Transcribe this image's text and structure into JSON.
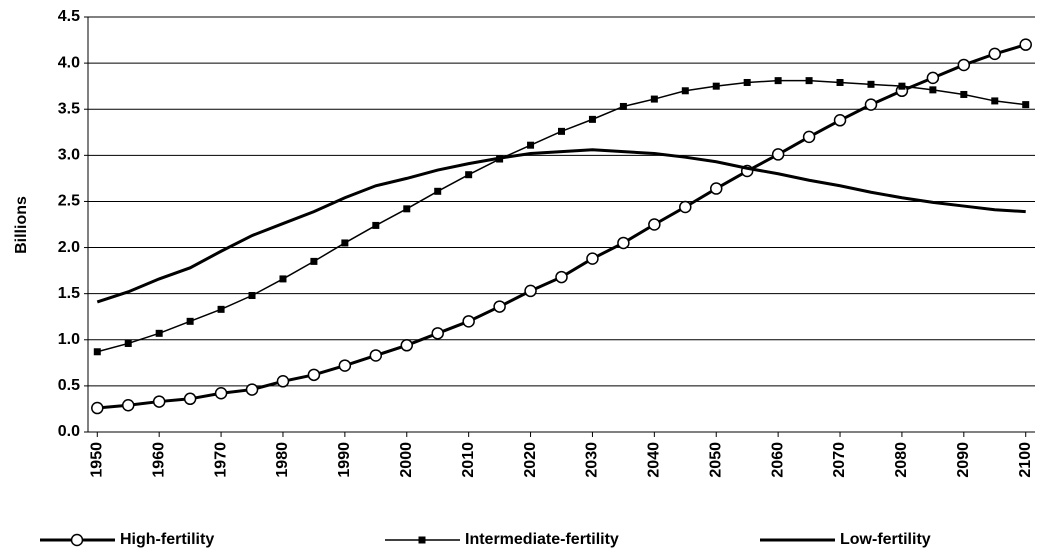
{
  "chart_data": {
    "type": "line",
    "y_label": "Billions",
    "x": [
      1950,
      1955,
      1960,
      1965,
      1970,
      1975,
      1980,
      1985,
      1990,
      1995,
      2000,
      2005,
      2010,
      2015,
      2020,
      2025,
      2030,
      2035,
      2040,
      2045,
      2050,
      2055,
      2060,
      2065,
      2070,
      2075,
      2080,
      2085,
      2090,
      2095,
      2100
    ],
    "series": [
      {
        "name": "High-fertility",
        "color": "#000000",
        "marker": "circle",
        "line_width": 3,
        "values": [
          0.26,
          0.29,
          0.33,
          0.36,
          0.42,
          0.46,
          0.55,
          0.62,
          0.72,
          0.83,
          0.94,
          1.07,
          1.2,
          1.36,
          1.53,
          1.68,
          1.88,
          2.05,
          2.25,
          2.44,
          2.64,
          2.83,
          3.01,
          3.2,
          3.38,
          3.55,
          3.7,
          3.84,
          3.98,
          4.1,
          4.2
        ]
      },
      {
        "name": "Intermediate-fertility",
        "color": "#000000",
        "marker": "square",
        "line_width": 1.5,
        "values": [
          0.87,
          0.96,
          1.07,
          1.2,
          1.33,
          1.48,
          1.66,
          1.85,
          2.05,
          2.24,
          2.42,
          2.61,
          2.79,
          2.96,
          3.11,
          3.26,
          3.39,
          3.53,
          3.61,
          3.7,
          3.75,
          3.79,
          3.81,
          3.81,
          3.79,
          3.77,
          3.75,
          3.71,
          3.66,
          3.59,
          3.55
        ]
      },
      {
        "name": "Low-fertility",
        "color": "#000000",
        "marker": "none",
        "line_width": 3,
        "values": [
          1.41,
          1.52,
          1.66,
          1.78,
          1.96,
          2.13,
          2.26,
          2.39,
          2.54,
          2.67,
          2.75,
          2.84,
          2.91,
          2.97,
          3.02,
          3.04,
          3.06,
          3.04,
          3.02,
          2.98,
          2.93,
          2.86,
          2.8,
          2.73,
          2.67,
          2.6,
          2.54,
          2.49,
          2.45,
          2.41,
          2.39
        ]
      }
    ],
    "xlim": [
      1948.5,
      2101.5
    ],
    "xticks": [
      1950,
      1960,
      1970,
      1980,
      1990,
      2000,
      2010,
      2020,
      2030,
      2040,
      2050,
      2060,
      2070,
      2080,
      2090,
      2100
    ],
    "ylim": [
      0,
      4.5
    ],
    "yticks": [
      {
        "value": 0,
        "label": "0.0"
      },
      {
        "value": 0.5,
        "label": "0.5"
      },
      {
        "value": 1,
        "label": "1.0"
      },
      {
        "value": 1.5,
        "label": "1.5"
      },
      {
        "value": 2,
        "label": "2.0"
      },
      {
        "value": 2.5,
        "label": "2.5"
      },
      {
        "value": 3,
        "label": "3.0"
      },
      {
        "value": 3.5,
        "label": "3.5"
      },
      {
        "value": 4,
        "label": "4.0"
      },
      {
        "value": 4.5,
        "label": "4.5"
      }
    ],
    "grid": true,
    "legend": "bottom"
  }
}
